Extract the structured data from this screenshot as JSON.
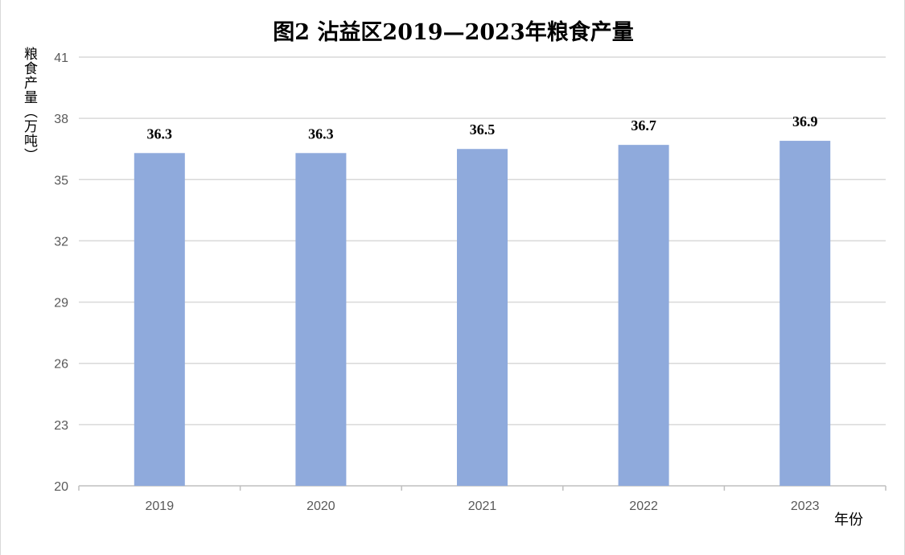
{
  "chart_data": {
    "type": "bar",
    "title": "图2   沾益区2019—2023年粮食产量",
    "ylabel": "粮食产量（万吨）",
    "xlabel": "年份",
    "categories": [
      "2019",
      "2020",
      "2021",
      "2022",
      "2023"
    ],
    "values": [
      36.3,
      36.3,
      36.5,
      36.7,
      36.9
    ],
    "data_labels": [
      "36.3",
      "36.3",
      "36.5",
      "36.7",
      "36.9"
    ],
    "yticks": [
      20,
      23,
      26,
      29,
      32,
      35,
      38,
      41
    ],
    "ylim": [
      20,
      41
    ],
    "grid": true,
    "bar_color": "#8faadc",
    "grid_color": "#d9d9d9",
    "tick_label_color": "#595959",
    "data_label_color": "#000000"
  }
}
